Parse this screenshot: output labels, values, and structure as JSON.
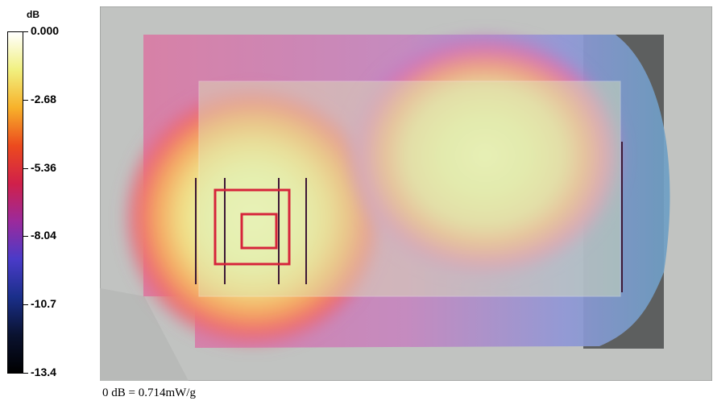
{
  "chart_data": {
    "type": "heatmap",
    "colorbar": {
      "unit": "dB",
      "min": -13.4,
      "max": 0.0,
      "tick_labels": [
        "0.000",
        "-2.68",
        "-5.36",
        "-8.04",
        "-10.7",
        "-13.4"
      ],
      "tick_values": [
        0.0,
        -2.68,
        -5.36,
        -8.04,
        -10.7,
        -13.4
      ],
      "colors": [
        "#ffffff",
        "#f1f07f",
        "#f7b12a",
        "#ec4a1e",
        "#d0204a",
        "#9b2a9c",
        "#4a3bc8",
        "#1a2f8a",
        "#0a1230",
        "#000000"
      ]
    },
    "hotspots": [
      {
        "peak_db": 0.0
      },
      {
        "peak_db": -1.0
      }
    ],
    "colors": {
      "background": "#c1c3c1",
      "shadow": "#5d5f5f",
      "probe_grid": "#d6243b"
    }
  },
  "footnote": "0 dB = 0.714mW/g"
}
